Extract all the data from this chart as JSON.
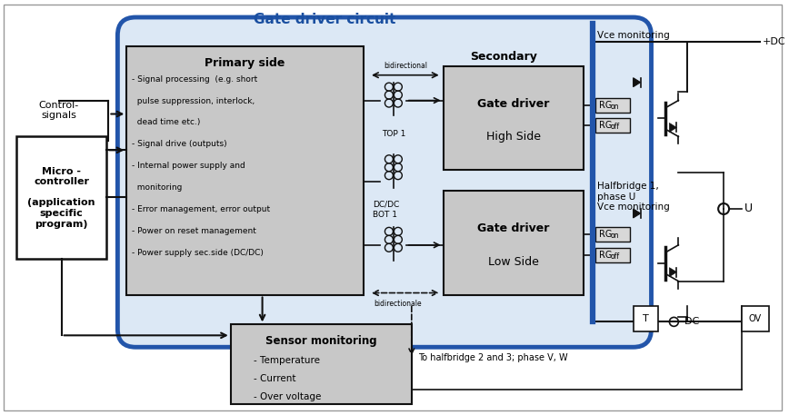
{
  "fig_width": 8.68,
  "fig_height": 4.57,
  "white_bg": "#ffffff",
  "gray_bg": "#c8c8c8",
  "light_gray": "#d8d8d8",
  "blue_border_color": "#2255aa",
  "black": "#111111",
  "title": "Gate driver circuit",
  "title_color": "#1a4fa0",
  "primary_title": "Primary side",
  "primary_bullets": [
    "- Signal processing  (e.g. short",
    "  pulse suppression, interlock,",
    "  dead time etc.)",
    "- Signal drive (outputs)",
    "- Internal power supply and",
    "  monitoring",
    "- Error management, error output",
    "- Power on reset management",
    "- Power supply sec.side (DC/DC)"
  ],
  "secondary_label": "Secondary",
  "gate_high_line1": "Gate driver",
  "gate_high_line2": "High Side",
  "gate_low_line1": "Gate driver",
  "gate_low_line2": "Low Side",
  "mc_text": "Micro -\ncontroller\n\n(application\nspecific\nprogram)",
  "sensor_title": "Sensor monitoring",
  "sensor_bullets": [
    "- Temperature",
    "- Current",
    "- Over voltage"
  ],
  "control_signals": "Control-\nsignals",
  "vce_monitoring": "Vce monitoring",
  "halfbridge_text": "Halfbridge 1,\nphase U\nVce monitoring",
  "plus_dc": "+DC",
  "minus_dc": "-DC",
  "u_label": "U",
  "t_label": "T",
  "ov_label": "OV",
  "top1_label": "TOP 1",
  "dcdc_bot1_line1": "DC/DC",
  "dcdc_bot1_line2": "BOT 1",
  "bidirectional": "bidirectional",
  "bidirectionale": "bidirectionale",
  "to_halfbridge": "To halfbridge 2 and 3; phase V, W"
}
